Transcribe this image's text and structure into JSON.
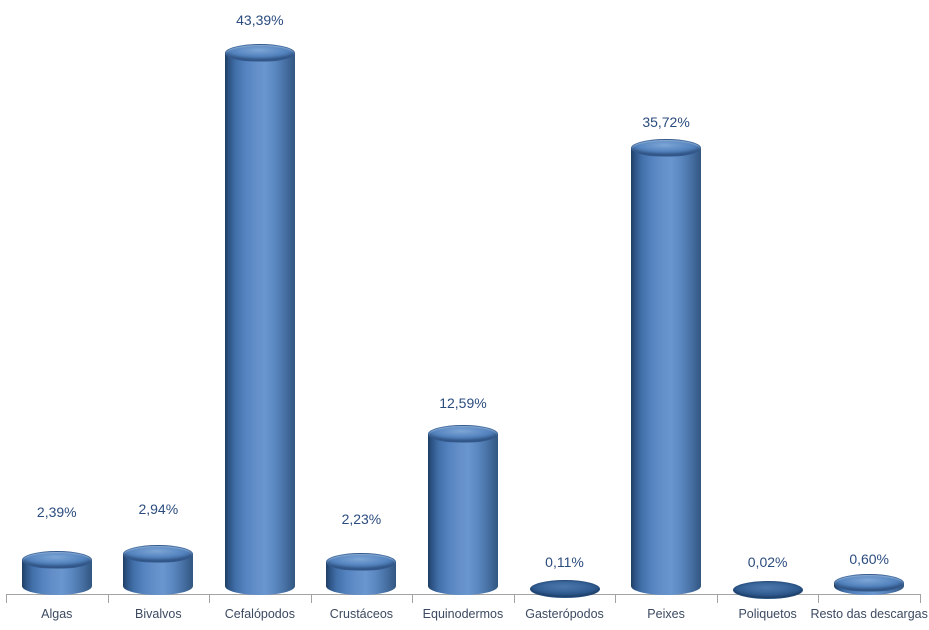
{
  "chart_data": {
    "type": "bar",
    "subtype": "3d-cylinder",
    "title": "",
    "xlabel": "",
    "ylabel": "",
    "unit": "%",
    "categories": [
      "Algas",
      "Bivalvos",
      "Cefalópodos",
      "Crustáceos",
      "Equinodermos",
      "Gasterópodos",
      "Peixes",
      "Poliquetos",
      "Resto das descargas"
    ],
    "values": [
      2.39,
      2.94,
      43.39,
      2.23,
      12.59,
      0.11,
      35.72,
      0.02,
      0.6
    ],
    "data_labels": [
      "2,39%",
      "2,94%",
      "43,39%",
      "2,23%",
      "12,59%",
      "0,11%",
      "35,72%",
      "0,02%",
      "0,60%"
    ],
    "ylim": [
      0,
      45
    ],
    "grid": false,
    "legend": "none",
    "colors": {
      "bar_main": "#4f81bd",
      "bar_highlight": "#6996cf",
      "bar_shadow": "#1e3e62",
      "flat_disc": "#2f5a8e",
      "data_label_text": "#2b4c7e",
      "axis_label_text": "#3c4a61",
      "axis_line": "#a3a3a3",
      "background": "#ffffff"
    }
  }
}
